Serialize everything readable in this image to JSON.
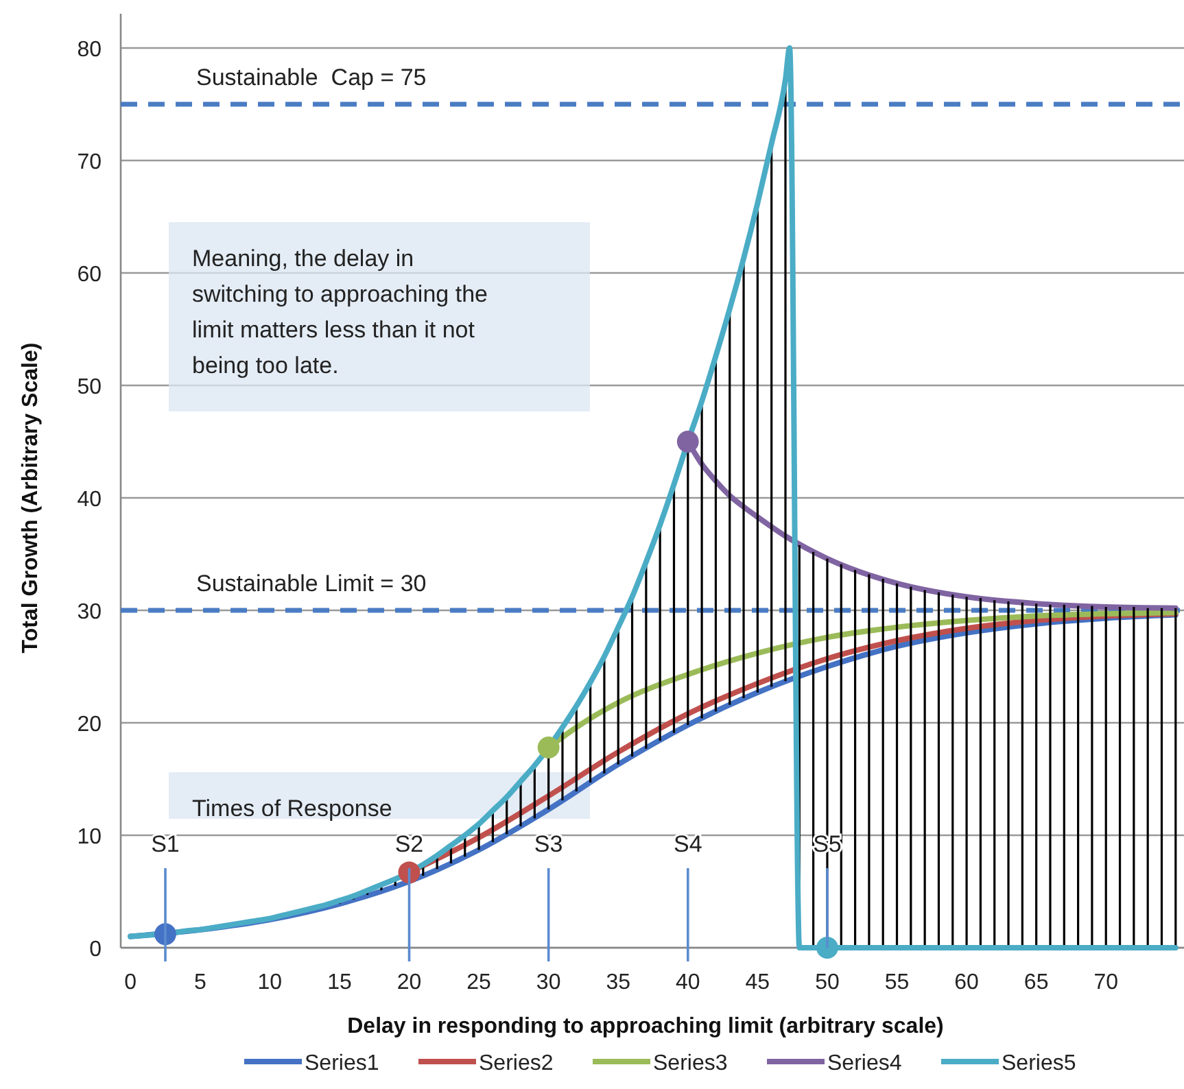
{
  "chart_data": {
    "type": "line",
    "xlabel": "Delay in responding to approaching limit (arbitrary scale)",
    "ylabel": "Total Growth (Arbitrary Scale)",
    "xlim": [
      -0.7,
      75.6
    ],
    "xticks": [
      0,
      5,
      10,
      15,
      20,
      25,
      30,
      35,
      40,
      45,
      50,
      55,
      60,
      65,
      70
    ],
    "ylim": [
      0,
      80
    ],
    "yticks": [
      0,
      10,
      20,
      30,
      40,
      50,
      60,
      70,
      80
    ],
    "grid": "y",
    "legend": "bottom",
    "marker": "none",
    "line_style": "solid",
    "series": [
      {
        "name": "Series1",
        "color": "#4472c4",
        "x": [
          0,
          5,
          10,
          15,
          20,
          25,
          30,
          35,
          40,
          45,
          50,
          55,
          60,
          65,
          70,
          75
        ],
        "values": [
          1.0,
          1.6,
          2.5,
          3.9,
          5.9,
          8.7,
          12.3,
          16.3,
          19.8,
          22.7,
          25.0,
          26.8,
          28.0,
          28.8,
          29.3,
          29.6
        ]
      },
      {
        "name": "Series2",
        "color": "#c0504d",
        "x": [
          20,
          25,
          30,
          35,
          40,
          45,
          50,
          55,
          60,
          65,
          70,
          75
        ],
        "values": [
          6.7,
          9.8,
          13.5,
          17.4,
          20.8,
          23.5,
          25.7,
          27.3,
          28.4,
          29.1,
          29.5,
          29.7
        ]
      },
      {
        "name": "Series3",
        "color": "#9bbb59",
        "x": [
          30,
          32,
          35,
          40,
          45,
          50,
          55,
          60,
          65,
          70,
          75
        ],
        "values": [
          17.8,
          19.6,
          21.8,
          24.3,
          26.2,
          27.6,
          28.5,
          29.1,
          29.5,
          29.7,
          29.8
        ]
      },
      {
        "name": "Series4",
        "color": "#8064a2",
        "x": [
          40,
          41,
          42,
          43,
          44,
          45,
          47,
          50,
          55,
          60,
          65,
          70,
          75
        ],
        "values": [
          45,
          43,
          41.5,
          40.2,
          39.2,
          38.3,
          36.6,
          34.6,
          32.4,
          31.2,
          30.6,
          30.3,
          30.2
        ]
      },
      {
        "name": "Series5",
        "color": "#4bacc6",
        "x": [
          0,
          1,
          2,
          3,
          4,
          5,
          6,
          7,
          8,
          9,
          10,
          11,
          12,
          13,
          14,
          15,
          16,
          17,
          18,
          19,
          20,
          21,
          22,
          23,
          24,
          25,
          26,
          27,
          28,
          29,
          30,
          31,
          32,
          33,
          34,
          35,
          36,
          37,
          38,
          39,
          40,
          41,
          42,
          43,
          44,
          45,
          46,
          47,
          47.3,
          48,
          49,
          50,
          51,
          52,
          53,
          54,
          55,
          56,
          57,
          58,
          59,
          60,
          61,
          62,
          63,
          64,
          65,
          66,
          67,
          68,
          69,
          70,
          71,
          72,
          73,
          74,
          75
        ],
        "values": [
          1.0,
          1.1,
          1.2,
          1.3,
          1.5,
          1.6,
          1.8,
          2.0,
          2.2,
          2.4,
          2.6,
          2.9,
          3.2,
          3.5,
          3.8,
          4.2,
          4.6,
          5.1,
          5.6,
          6.1,
          6.7,
          7.4,
          8.2,
          9.1,
          10.0,
          11.0,
          12.2,
          13.4,
          14.8,
          16.2,
          17.8,
          19.6,
          21.5,
          23.6,
          25.9,
          28.5,
          31.2,
          34.3,
          37.6,
          41.2,
          45,
          48.6,
          52.6,
          56.8,
          61.3,
          66.2,
          71.5,
          77.2,
          80,
          0,
          0,
          0,
          0,
          0,
          0,
          0,
          0,
          0,
          0,
          0,
          0,
          0,
          0,
          0,
          0,
          0,
          0,
          0,
          0,
          0,
          0,
          0,
          0,
          0,
          0,
          0,
          0
        ],
        "errors": [
          null,
          null,
          null,
          null,
          null,
          null,
          null,
          null,
          null,
          null,
          [
            2.5,
            2.6
          ],
          [
            2.7,
            2.9
          ],
          [
            3.0,
            3.2
          ],
          [
            3.3,
            3.5
          ],
          [
            3.6,
            3.8
          ],
          [
            3.9,
            4.2
          ],
          [
            4.3,
            4.6
          ],
          [
            4.7,
            5.1
          ],
          [
            5.1,
            5.6
          ],
          [
            5.5,
            6.1
          ],
          null,
          [
            6.4,
            7.4
          ],
          [
            7.0,
            8.2
          ],
          [
            7.5,
            9.1
          ],
          [
            8.1,
            10.0
          ],
          [
            8.7,
            11.0
          ],
          [
            9.4,
            12.2
          ],
          [
            10.1,
            13.4
          ],
          [
            10.8,
            14.8
          ],
          [
            11.5,
            16.2
          ],
          [
            12.3,
            17.8
          ],
          [
            13.1,
            19.6
          ],
          [
            13.9,
            21.5
          ],
          [
            14.7,
            23.6
          ],
          [
            15.5,
            25.9
          ],
          [
            16.3,
            28.5
          ],
          [
            17.0,
            31.2
          ],
          [
            17.7,
            34.3
          ],
          [
            18.4,
            37.6
          ],
          [
            19.1,
            41.2
          ],
          [
            19.8,
            45
          ],
          [
            20.4,
            48.6
          ],
          [
            21.0,
            52.6
          ],
          [
            21.6,
            56.8
          ],
          [
            22.2,
            61.3
          ],
          [
            22.7,
            66.2
          ],
          [
            23.2,
            71.5
          ],
          [
            23.7,
            77.2
          ],
          null,
          [
            0,
            35.8
          ],
          [
            0,
            35.2
          ],
          [
            0,
            34.6
          ],
          [
            0,
            34.1
          ],
          [
            0,
            33.6
          ],
          [
            0,
            33.2
          ],
          [
            0,
            32.8
          ],
          [
            0,
            32.4
          ],
          [
            0,
            32.1
          ],
          [
            0,
            31.8
          ],
          [
            0,
            31.6
          ],
          [
            0,
            31.4
          ],
          [
            0,
            31.2
          ],
          [
            0,
            31.1
          ],
          [
            0,
            30.9
          ],
          [
            0,
            30.8
          ],
          [
            0,
            30.7
          ],
          [
            0,
            30.6
          ],
          [
            0,
            30.5
          ],
          [
            0,
            30.5
          ],
          [
            0,
            30.4
          ],
          [
            0,
            30.4
          ],
          [
            0,
            30.3
          ],
          [
            0,
            30.3
          ],
          [
            0,
            30.3
          ],
          [
            0,
            30.2
          ],
          [
            0,
            30.2
          ],
          [
            0,
            30.2
          ]
        ]
      },
      {
        "type": "scatter",
        "marker": "circle",
        "x": [
          2.5,
          20,
          30,
          40,
          50
        ],
        "values": [
          1.2,
          6.7,
          17.8,
          45,
          0
        ],
        "colors": [
          "#4472c4",
          "#c0504d",
          "#9bbb59",
          "#8064a2",
          "#4bacc6"
        ]
      }
    ],
    "ref_lines": [
      {
        "axis": "y",
        "value": 75,
        "label": "Sustainable  Cap = 75",
        "color": "#4a7cc4",
        "line_style": "dashed"
      },
      {
        "axis": "y",
        "value": 30,
        "label": "Sustainable Limit = 30",
        "color": "#4a7cc4",
        "line_style": "dashed"
      }
    ],
    "annotations": [
      "Meaning, the  delay in switching to approaching the limit matters less than it not being too late.",
      "Times of Response",
      "S1",
      "S2",
      "S3",
      "S4",
      {
        "text": "S5",
        "x": 50,
        "y": 0
      }
    ]
  }
}
